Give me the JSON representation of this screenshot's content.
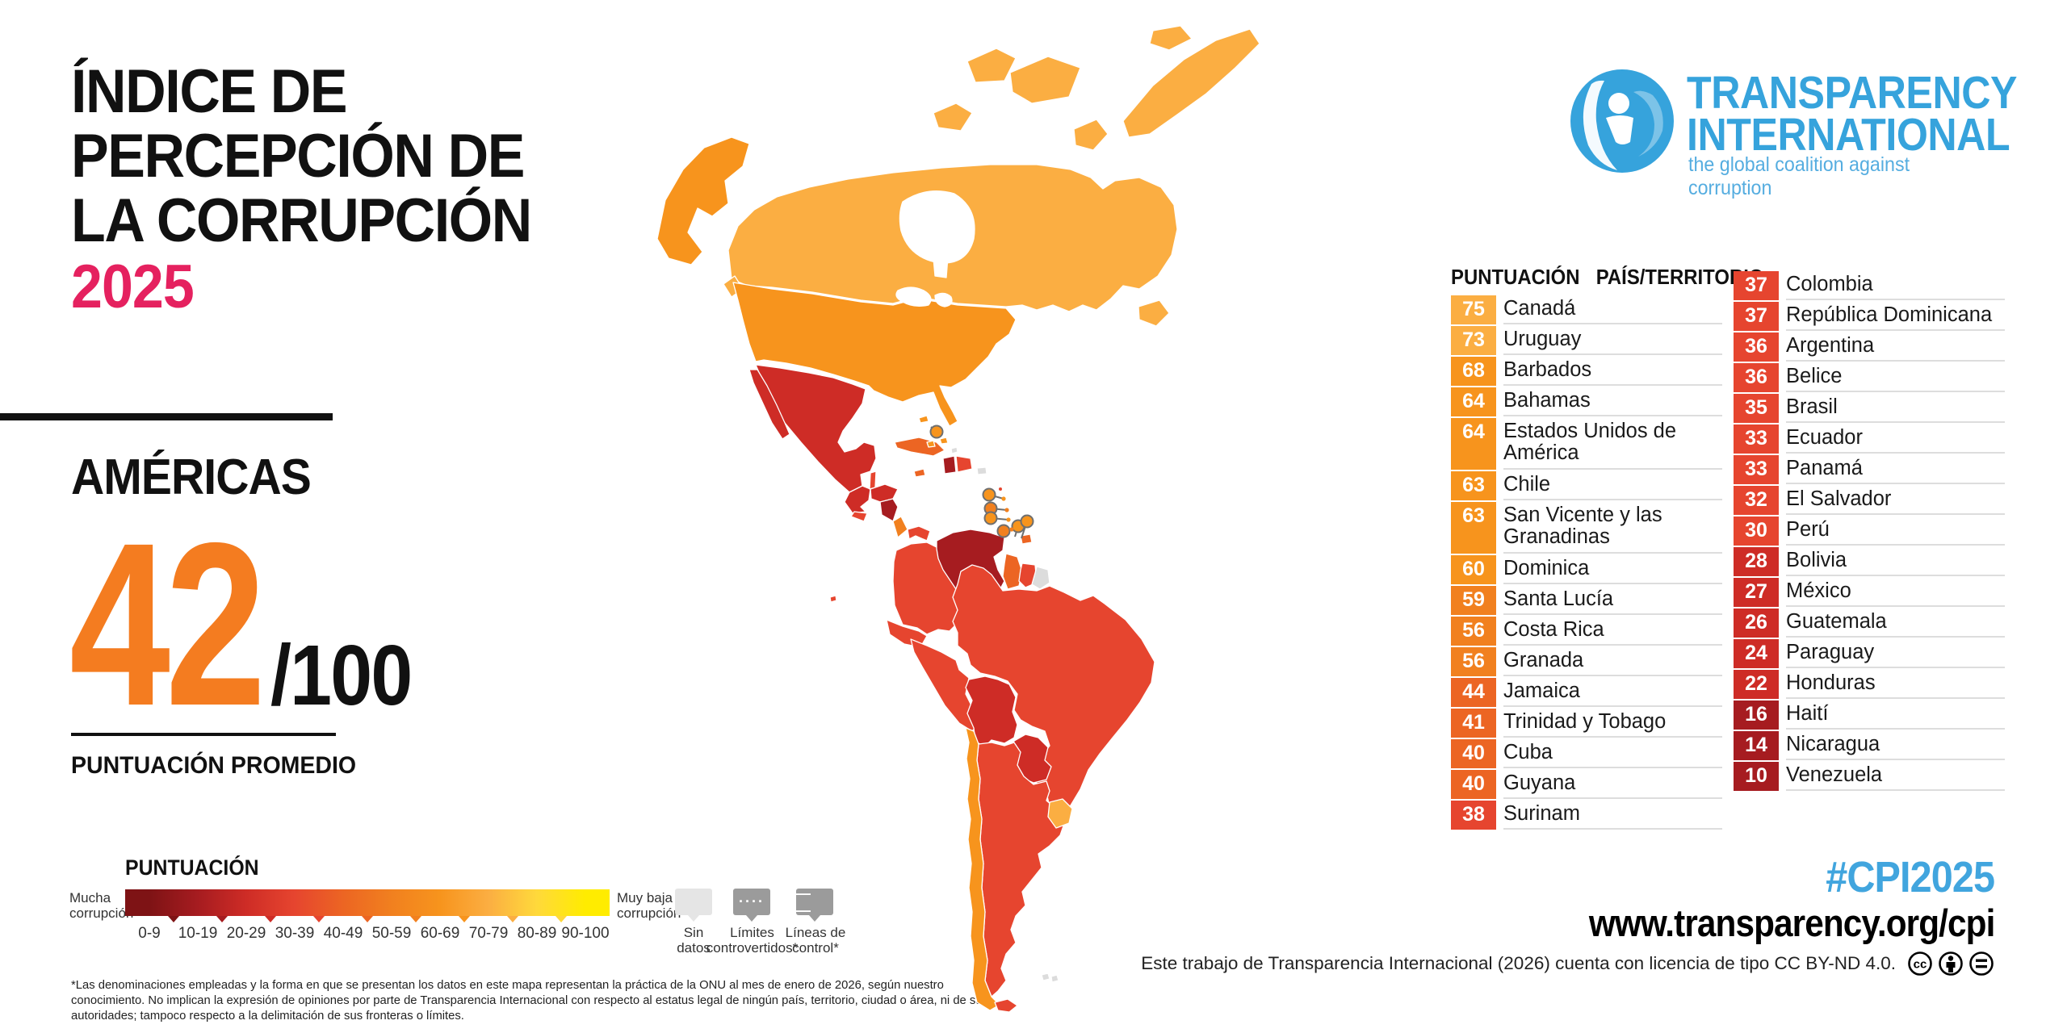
{
  "title": {
    "line1": "ÍNDICE DE",
    "line2": "PERCEPCIÓN DE",
    "line3": "LA CORRUPCIÓN",
    "year": "2025",
    "year_color": "#E5215F"
  },
  "region": {
    "name": "AMÉRICAS",
    "score": "42",
    "den": "/100",
    "score_color": "#F47C20",
    "caption": "PUNTUACIÓN PROMEDIO"
  },
  "logo": {
    "name1": "TRANSPARENCY",
    "name2": "INTERNATIONAL",
    "tagline": "the global coalition against corruption",
    "color": "#36A3DC",
    "tagline_color": "#55ADE0"
  },
  "table": {
    "header_score": "PUNTUACIÓN",
    "header_country": "PAÍS/TERRITORIO",
    "col1": [
      {
        "score": 75,
        "name": "Canadá",
        "lines": 1
      },
      {
        "score": 73,
        "name": "Uruguay",
        "lines": 1
      },
      {
        "score": 68,
        "name": "Barbados",
        "lines": 1
      },
      {
        "score": 64,
        "name": "Bahamas",
        "lines": 1
      },
      {
        "score": 64,
        "name": "Estados Unidos de América",
        "lines": 2
      },
      {
        "score": 63,
        "name": "Chile",
        "lines": 1
      },
      {
        "score": 63,
        "name": "San Vicente y las Granadinas",
        "lines": 2
      },
      {
        "score": 60,
        "name": "Dominica",
        "lines": 1
      },
      {
        "score": 59,
        "name": "Santa Lucía",
        "lines": 1
      },
      {
        "score": 56,
        "name": "Costa Rica",
        "lines": 1
      },
      {
        "score": 56,
        "name": "Granada",
        "lines": 1
      },
      {
        "score": 44,
        "name": "Jamaica",
        "lines": 1
      },
      {
        "score": 41,
        "name": "Trinidad y Tobago",
        "lines": 1
      },
      {
        "score": 40,
        "name": "Cuba",
        "lines": 1
      },
      {
        "score": 40,
        "name": "Guyana",
        "lines": 1
      },
      {
        "score": 38,
        "name": "Surinam",
        "lines": 1
      }
    ],
    "col2": [
      {
        "score": 37,
        "name": "Colombia",
        "lines": 1
      },
      {
        "score": 37,
        "name": "República Dominicana",
        "lines": 1
      },
      {
        "score": 36,
        "name": "Argentina",
        "lines": 1
      },
      {
        "score": 36,
        "name": "Belice",
        "lines": 1
      },
      {
        "score": 35,
        "name": "Brasil",
        "lines": 1
      },
      {
        "score": 33,
        "name": "Ecuador",
        "lines": 1
      },
      {
        "score": 33,
        "name": "Panamá",
        "lines": 1
      },
      {
        "score": 32,
        "name": "El Salvador",
        "lines": 1
      },
      {
        "score": 30,
        "name": "Perú",
        "lines": 1
      },
      {
        "score": 28,
        "name": "Bolivia",
        "lines": 1
      },
      {
        "score": 27,
        "name": "México",
        "lines": 1
      },
      {
        "score": 26,
        "name": "Guatemala",
        "lines": 1
      },
      {
        "score": 24,
        "name": "Paraguay",
        "lines": 1
      },
      {
        "score": 22,
        "name": "Honduras",
        "lines": 1
      },
      {
        "score": 16,
        "name": "Haití",
        "lines": 1
      },
      {
        "score": 14,
        "name": "Nicaragua",
        "lines": 1
      },
      {
        "score": 10,
        "name": "Venezuela",
        "lines": 1
      }
    ]
  },
  "legend": {
    "title": "PUNTUACIÓN",
    "low_label": "Mucha corrupción",
    "high_label": "Muy baja corrupción",
    "ticks": [
      "0-9",
      "10-19",
      "20-29",
      "30-39",
      "40-49",
      "50-59",
      "60-69",
      "70-79",
      "80-89",
      "90-100"
    ],
    "palette": [
      {
        "range": "0-9",
        "color": "#7E1315"
      },
      {
        "range": "10-19",
        "color": "#A61C20"
      },
      {
        "range": "20-29",
        "color": "#CE2C26"
      },
      {
        "range": "30-39",
        "color": "#E6452F"
      },
      {
        "range": "40-49",
        "color": "#EC6523"
      },
      {
        "range": "50-59",
        "color": "#F1801F"
      },
      {
        "range": "60-69",
        "color": "#F7941D"
      },
      {
        "range": "70-79",
        "color": "#FBAE42"
      },
      {
        "range": "80-89",
        "color": "#FFD93B"
      },
      {
        "range": "90-100",
        "color": "#FFEC00"
      }
    ],
    "no_data_label": "Sin datos",
    "disputed_label": "Límites controvertidos*",
    "control_label": "Líneas de control*",
    "no_data_color": "#E5E5E5",
    "gray_box_color": "#9B9B9B"
  },
  "footnote": "*Las denominaciones empleadas y la forma en que se presentan los datos en este mapa representan la práctica de la ONU al mes de enero de 2026, según nuestro conocimiento. No implican la expresión de opiniones por parte de Transparencia Internacional con respecto al estatus legal de ningún país, territorio, ciudad o área, ni de sus autoridades; tampoco respecto a la delimitación de sus fronteras o límites.",
  "footer": {
    "hashtag": "#CPI2025",
    "hashtag_color": "#41A5DE",
    "url": "www.transparency.org/cpi",
    "license": "Este trabajo de Transparencia Internacional (2026) cuenta con licencia de tipo CC BY-ND 4.0."
  },
  "map_scores": {
    "canada": 75,
    "usa": 64,
    "mexico": 27,
    "guatemala": 26,
    "belize": 36,
    "honduras": 22,
    "el_salvador": 32,
    "nicaragua": 14,
    "costa_rica": 56,
    "panama": 33,
    "cuba": 40,
    "jamaica": 44,
    "haiti": 16,
    "dominican_republic": 37,
    "bahamas": 64,
    "colombia": 37,
    "venezuela": 10,
    "guyana": 40,
    "suriname": 38,
    "ecuador": 33,
    "peru": 30,
    "brazil": 35,
    "bolivia": 28,
    "paraguay": 24,
    "chile": 63,
    "argentina": 36,
    "uruguay": 73,
    "trinidad": 41,
    "antilles_markers": [
      60,
      59,
      63,
      56,
      68,
      64
    ]
  }
}
